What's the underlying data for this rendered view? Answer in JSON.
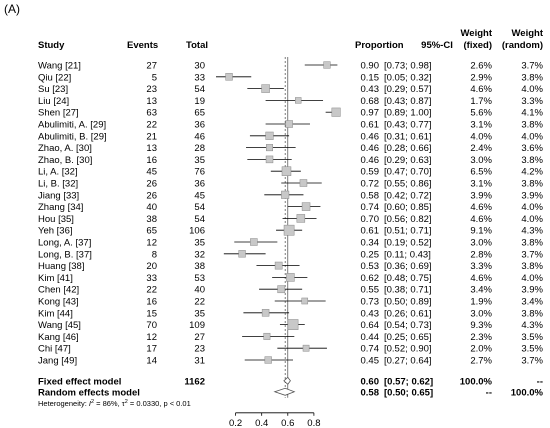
{
  "panel_label": "(A)",
  "chart_data": {
    "type": "forest",
    "headers": {
      "study": "Study",
      "events": "Events",
      "total": "Total",
      "proportion": "Proportion",
      "ci": "95%-CI",
      "weight_fixed": [
        "Weight",
        "(fixed)"
      ],
      "weight_random": [
        "Weight",
        "(random)"
      ]
    },
    "studies": [
      {
        "study": "Wang [21]",
        "events": "27",
        "total": "30",
        "proportion_text": "0.90",
        "ci_text": "[0.73; 0.98]",
        "wf": "2.6%",
        "wr": "3.7%",
        "est": 0.9,
        "lo": 0.73,
        "hi": 0.98
      },
      {
        "study": "Qiu [22]",
        "events": "5",
        "total": "33",
        "proportion_text": "0.15",
        "ci_text": "[0.05; 0.32]",
        "wf": "2.9%",
        "wr": "3.8%",
        "est": 0.15,
        "lo": 0.05,
        "hi": 0.32
      },
      {
        "study": "Su [23]",
        "events": "23",
        "total": "54",
        "proportion_text": "0.43",
        "ci_text": "[0.29; 0.57]",
        "wf": "4.6%",
        "wr": "4.0%",
        "est": 0.43,
        "lo": 0.29,
        "hi": 0.57
      },
      {
        "study": "Liu [24]",
        "events": "13",
        "total": "19",
        "proportion_text": "0.68",
        "ci_text": "[0.43; 0.87]",
        "wf": "1.7%",
        "wr": "3.3%",
        "est": 0.68,
        "lo": 0.43,
        "hi": 0.87
      },
      {
        "study": "Shen [27]",
        "events": "63",
        "total": "65",
        "proportion_text": "0.97",
        "ci_text": "[0.89; 1.00]",
        "wf": "5.6%",
        "wr": "4.1%",
        "est": 0.97,
        "lo": 0.89,
        "hi": 1.0
      },
      {
        "study": "Abulimiti, A. [29]",
        "events": "22",
        "total": "36",
        "proportion_text": "0.61",
        "ci_text": "[0.43; 0.77]",
        "wf": "3.1%",
        "wr": "3.8%",
        "est": 0.61,
        "lo": 0.43,
        "hi": 0.77
      },
      {
        "study": "Abulimiti, B. [29]",
        "events": "21",
        "total": "46",
        "proportion_text": "0.46",
        "ci_text": "[0.31; 0.61]",
        "wf": "4.0%",
        "wr": "4.0%",
        "est": 0.46,
        "lo": 0.31,
        "hi": 0.61
      },
      {
        "study": "Zhao, A. [30]",
        "events": "13",
        "total": "28",
        "proportion_text": "0.46",
        "ci_text": "[0.28; 0.66]",
        "wf": "2.4%",
        "wr": "3.6%",
        "est": 0.46,
        "lo": 0.28,
        "hi": 0.66
      },
      {
        "study": "Zhao, B. [30]",
        "events": "16",
        "total": "35",
        "proportion_text": "0.46",
        "ci_text": "[0.29; 0.63]",
        "wf": "3.0%",
        "wr": "3.8%",
        "est": 0.46,
        "lo": 0.29,
        "hi": 0.63
      },
      {
        "study": "Li, A. [32]",
        "events": "45",
        "total": "76",
        "proportion_text": "0.59",
        "ci_text": "[0.47; 0.70]",
        "wf": "6.5%",
        "wr": "4.2%",
        "est": 0.59,
        "lo": 0.47,
        "hi": 0.7
      },
      {
        "study": "Li, B. [32]",
        "events": "26",
        "total": "36",
        "proportion_text": "0.72",
        "ci_text": "[0.55; 0.86]",
        "wf": "3.1%",
        "wr": "3.8%",
        "est": 0.72,
        "lo": 0.55,
        "hi": 0.86
      },
      {
        "study": "Jiang [33]",
        "events": "26",
        "total": "45",
        "proportion_text": "0.58",
        "ci_text": "[0.42; 0.72]",
        "wf": "3.9%",
        "wr": "3.9%",
        "est": 0.58,
        "lo": 0.42,
        "hi": 0.72
      },
      {
        "study": "Zhang [34]",
        "events": "40",
        "total": "54",
        "proportion_text": "0.74",
        "ci_text": "[0.60; 0.85]",
        "wf": "4.6%",
        "wr": "4.0%",
        "est": 0.74,
        "lo": 0.6,
        "hi": 0.85
      },
      {
        "study": "Hou [35]",
        "events": "38",
        "total": "54",
        "proportion_text": "0.70",
        "ci_text": "[0.56; 0.82]",
        "wf": "4.6%",
        "wr": "4.0%",
        "est": 0.7,
        "lo": 0.56,
        "hi": 0.82
      },
      {
        "study": "Yeh [36]",
        "events": "65",
        "total": "106",
        "proportion_text": "0.61",
        "ci_text": "[0.51; 0.71]",
        "wf": "9.1%",
        "wr": "4.3%",
        "est": 0.61,
        "lo": 0.51,
        "hi": 0.71
      },
      {
        "study": "Long, A. [37]",
        "events": "12",
        "total": "35",
        "proportion_text": "0.34",
        "ci_text": "[0.19; 0.52]",
        "wf": "3.0%",
        "wr": "3.8%",
        "est": 0.34,
        "lo": 0.19,
        "hi": 0.52
      },
      {
        "study": "Long, B. [37]",
        "events": "8",
        "total": "32",
        "proportion_text": "0.25",
        "ci_text": "[0.11; 0.43]",
        "wf": "2.8%",
        "wr": "3.7%",
        "est": 0.25,
        "lo": 0.11,
        "hi": 0.43
      },
      {
        "study": "Huang [38]",
        "events": "20",
        "total": "38",
        "proportion_text": "0.53",
        "ci_text": "[0.36; 0.69]",
        "wf": "3.3%",
        "wr": "3.8%",
        "est": 0.53,
        "lo": 0.36,
        "hi": 0.69
      },
      {
        "study": "Kim [41]",
        "events": "33",
        "total": "53",
        "proportion_text": "0.62",
        "ci_text": "[0.48; 0.75]",
        "wf": "4.6%",
        "wr": "4.0%",
        "est": 0.62,
        "lo": 0.48,
        "hi": 0.75
      },
      {
        "study": "Chen [42]",
        "events": "22",
        "total": "40",
        "proportion_text": "0.55",
        "ci_text": "[0.38; 0.71]",
        "wf": "3.4%",
        "wr": "3.9%",
        "est": 0.55,
        "lo": 0.38,
        "hi": 0.71
      },
      {
        "study": "Kong [43]",
        "events": "16",
        "total": "22",
        "proportion_text": "0.73",
        "ci_text": "[0.50; 0.89]",
        "wf": "1.9%",
        "wr": "3.4%",
        "est": 0.73,
        "lo": 0.5,
        "hi": 0.89
      },
      {
        "study": "Kim [44]",
        "events": "15",
        "total": "35",
        "proportion_text": "0.43",
        "ci_text": "[0.26; 0.61]",
        "wf": "3.0%",
        "wr": "3.8%",
        "est": 0.43,
        "lo": 0.26,
        "hi": 0.61
      },
      {
        "study": "Wang [45]",
        "events": "70",
        "total": "109",
        "proportion_text": "0.64",
        "ci_text": "[0.54; 0.73]",
        "wf": "9.3%",
        "wr": "4.3%",
        "est": 0.64,
        "lo": 0.54,
        "hi": 0.73
      },
      {
        "study": "Kang [46]",
        "events": "12",
        "total": "27",
        "proportion_text": "0.44",
        "ci_text": "[0.25; 0.65]",
        "wf": "2.3%",
        "wr": "3.5%",
        "est": 0.44,
        "lo": 0.25,
        "hi": 0.65
      },
      {
        "study": "Chi [47]",
        "events": "17",
        "total": "23",
        "proportion_text": "0.74",
        "ci_text": "[0.52; 0.90]",
        "wf": "2.0%",
        "wr": "3.5%",
        "est": 0.74,
        "lo": 0.52,
        "hi": 0.9
      },
      {
        "study": "Jang [49]",
        "events": "14",
        "total": "31",
        "proportion_text": "0.45",
        "ci_text": "[0.27; 0.64]",
        "wf": "2.7%",
        "wr": "3.7%",
        "est": 0.45,
        "lo": 0.27,
        "hi": 0.64
      }
    ],
    "fixed_model": {
      "label": "Fixed effect model",
      "total": "1162",
      "proportion_text": "0.60",
      "ci_text": "[0.57; 0.62]",
      "wf": "100.0%",
      "wr": "--",
      "est": 0.6,
      "lo": 0.57,
      "hi": 0.62
    },
    "random_model": {
      "label": "Random effects model",
      "proportion_text": "0.58",
      "ci_text": "[0.50; 0.65]",
      "wf": "--",
      "wr": "100.0%",
      "est": 0.58,
      "lo": 0.5,
      "hi": 0.65
    },
    "heterogeneity": {
      "prefix": "Heterogeneity: ",
      "i2_symbol": "I",
      "i2_value": " = 86%, ",
      "tau_symbol": "τ",
      "tau_value": " = 0.0330, ",
      "p_text": "p < 0.01"
    },
    "x_ticks": [
      0.2,
      0.4,
      0.6,
      0.8
    ],
    "x_tick_labels": [
      "0.2",
      "0.4",
      "0.6",
      "0.8"
    ],
    "xlim": [
      0.05,
      1.0
    ]
  }
}
